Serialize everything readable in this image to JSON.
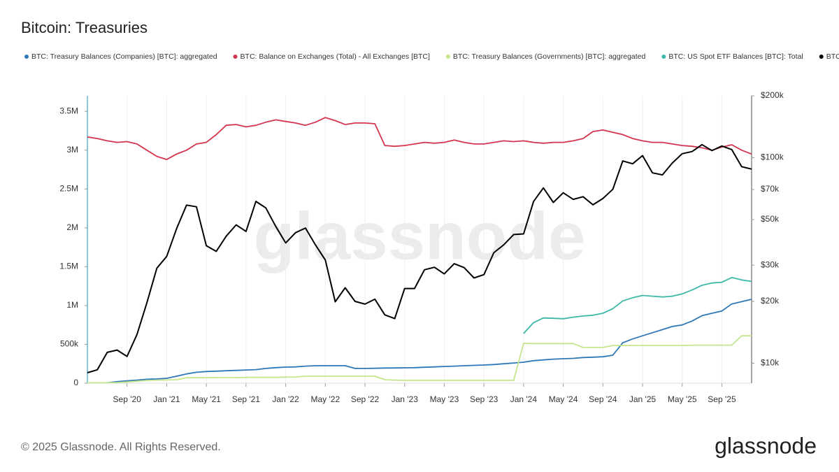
{
  "chart_data": {
    "type": "line",
    "title": "Bitcoin: Treasuries",
    "watermark": "glassnode",
    "footer": "© 2025 Glassnode. All Rights Reserved.",
    "logo": "glassnode",
    "legend": "top-left",
    "grid": "x",
    "x": [
      "2020-05",
      "2020-06",
      "2020-07",
      "2020-08",
      "2020-09",
      "2020-10",
      "2020-11",
      "2020-12",
      "2021-01",
      "2021-02",
      "2021-03",
      "2021-04",
      "2021-05",
      "2021-06",
      "2021-07",
      "2021-08",
      "2021-09",
      "2021-10",
      "2021-11",
      "2021-12",
      "2022-01",
      "2022-02",
      "2022-03",
      "2022-04",
      "2022-05",
      "2022-06",
      "2022-07",
      "2022-08",
      "2022-09",
      "2022-10",
      "2022-11",
      "2022-12",
      "2023-01",
      "2023-02",
      "2023-03",
      "2023-04",
      "2023-05",
      "2023-06",
      "2023-07",
      "2023-08",
      "2023-09",
      "2023-10",
      "2023-11",
      "2023-12",
      "2024-01",
      "2024-02",
      "2024-03",
      "2024-04",
      "2024-05",
      "2024-06",
      "2024-07",
      "2024-08",
      "2024-09",
      "2024-10",
      "2024-11",
      "2024-12",
      "2025-01",
      "2025-02",
      "2025-03",
      "2025-04",
      "2025-05",
      "2025-06",
      "2025-07",
      "2025-08",
      "2025-09",
      "2025-10",
      "2025-11",
      "2025-12"
    ],
    "xlim": [
      "2020-05",
      "2025-12"
    ],
    "xticks": [
      {
        "value": "2020-09",
        "label": "Sep '20"
      },
      {
        "value": "2021-01",
        "label": "Jan '21"
      },
      {
        "value": "2021-05",
        "label": "May '21"
      },
      {
        "value": "2021-09",
        "label": "Sep '21"
      },
      {
        "value": "2022-01",
        "label": "Jan '22"
      },
      {
        "value": "2022-05",
        "label": "May '22"
      },
      {
        "value": "2022-09",
        "label": "Sep '22"
      },
      {
        "value": "2023-01",
        "label": "Jan '23"
      },
      {
        "value": "2023-05",
        "label": "May '23"
      },
      {
        "value": "2023-09",
        "label": "Sep '23"
      },
      {
        "value": "2024-01",
        "label": "Jan '24"
      },
      {
        "value": "2024-05",
        "label": "May '24"
      },
      {
        "value": "2024-09",
        "label": "Sep '24"
      },
      {
        "value": "2025-01",
        "label": "Jan '25"
      },
      {
        "value": "2025-05",
        "label": "May '25"
      },
      {
        "value": "2025-09",
        "label": "Sep '25"
      }
    ],
    "ylim": [
      0,
      3700000
    ],
    "yticks": [
      0,
      {
        "value": 500000,
        "label": "500k"
      },
      {
        "value": 1000000,
        "label": "1M"
      },
      {
        "value": 1500000,
        "label": "1.5M"
      },
      {
        "value": 2000000,
        "label": "2M"
      },
      {
        "value": 2500000,
        "label": "2.5M"
      },
      {
        "value": 3000000,
        "label": "3M"
      },
      {
        "value": 3500000,
        "label": "3.5M"
      }
    ],
    "y2lim": [
      8000,
      200000
    ],
    "y2scale": "log",
    "y2ticks": [
      {
        "value": 10000,
        "label": "$10k"
      },
      {
        "value": 20000,
        "label": "$20k"
      },
      {
        "value": 30000,
        "label": "$30k"
      },
      {
        "value": 50000,
        "label": "$50k"
      },
      {
        "value": 70000,
        "label": "$70k"
      },
      {
        "value": 100000,
        "label": "$100k"
      },
      {
        "value": 200000,
        "label": "$200k"
      }
    ],
    "series": [
      {
        "name": "BTC: Treasury Balances (Companies) [BTC]: aggregated",
        "color": "#2e78b7",
        "values": [
          null,
          null,
          5000,
          20000,
          30000,
          40000,
          50000,
          55000,
          63000,
          90000,
          120000,
          140000,
          150000,
          155000,
          160000,
          165000,
          170000,
          175000,
          190000,
          200000,
          207000,
          210000,
          220000,
          225000,
          225000,
          225000,
          225000,
          190000,
          190000,
          192000,
          195000,
          196000,
          198000,
          200000,
          205000,
          210000,
          215000,
          220000,
          225000,
          230000,
          234000,
          240000,
          250000,
          260000,
          270000,
          290000,
          300000,
          310000,
          315000,
          320000,
          330000,
          335000,
          340000,
          360000,
          520000,
          570000,
          610000,
          650000,
          690000,
          730000,
          750000,
          800000,
          870000,
          900000,
          930000,
          1020000,
          1050000,
          1080000
        ]
      },
      {
        "name": "BTC: Balance on Exchanges (Total) - All Exchanges [BTC]",
        "color": "#d3354f",
        "values": [
          3170000,
          3150000,
          3120000,
          3100000,
          3110000,
          3080000,
          3000000,
          2920000,
          2880000,
          2950000,
          3000000,
          3080000,
          3100000,
          3200000,
          3320000,
          3330000,
          3300000,
          3320000,
          3360000,
          3390000,
          3370000,
          3350000,
          3320000,
          3360000,
          3420000,
          3380000,
          3330000,
          3350000,
          3350000,
          3340000,
          3060000,
          3050000,
          3060000,
          3080000,
          3100000,
          3090000,
          3100000,
          3130000,
          3100000,
          3080000,
          3080000,
          3100000,
          3120000,
          3110000,
          3120000,
          3100000,
          3090000,
          3100000,
          3100000,
          3120000,
          3150000,
          3240000,
          3260000,
          3230000,
          3200000,
          3150000,
          3120000,
          3100000,
          3100000,
          3080000,
          3060000,
          3050000,
          3030000,
          3000000,
          3040000,
          3070000,
          3000000,
          2950000
        ]
      },
      {
        "name": "BTC: Treasury Balances (Governments) [BTC]: aggregated",
        "color": "#c5e68c",
        "values": [
          5000,
          5000,
          5000,
          8000,
          15000,
          25000,
          35000,
          40000,
          42000,
          45000,
          70000,
          70000,
          70000,
          72000,
          72000,
          72000,
          75000,
          75000,
          75000,
          75000,
          78000,
          80000,
          90000,
          90000,
          90000,
          90000,
          90000,
          90000,
          90000,
          90000,
          45000,
          40000,
          36000,
          36000,
          36000,
          36000,
          36000,
          36000,
          36000,
          36000,
          36000,
          36000,
          36000,
          36000,
          513000,
          510000,
          510000,
          510000,
          510000,
          510000,
          460000,
          460000,
          460000,
          485000,
          485000,
          485000,
          485000,
          485000,
          485000,
          485000,
          485000,
          490000,
          490000,
          490000,
          490000,
          490000,
          610000,
          610000
        ]
      },
      {
        "name": "BTC: US Spot ETF Balances [BTC]: Total",
        "color": "#3db8a9",
        "values": [
          null,
          null,
          null,
          null,
          null,
          null,
          null,
          null,
          null,
          null,
          null,
          null,
          null,
          null,
          null,
          null,
          null,
          null,
          null,
          null,
          null,
          null,
          null,
          null,
          null,
          null,
          null,
          null,
          null,
          null,
          null,
          null,
          null,
          null,
          null,
          null,
          null,
          null,
          null,
          null,
          null,
          null,
          null,
          null,
          640000,
          780000,
          840000,
          835000,
          830000,
          850000,
          865000,
          875000,
          900000,
          960000,
          1060000,
          1100000,
          1130000,
          1120000,
          1110000,
          1120000,
          1150000,
          1200000,
          1260000,
          1290000,
          1300000,
          1360000,
          1330000,
          1310000
        ]
      },
      {
        "name": "BTC: Price [USD]",
        "color": "#000000",
        "axis": "y2",
        "values": [
          9000,
          9300,
          11300,
          11600,
          10800,
          13800,
          19700,
          29000,
          33100,
          45200,
          58800,
          57700,
          37300,
          35000,
          41500,
          47100,
          43800,
          61300,
          57000,
          46300,
          38500,
          43200,
          45500,
          37700,
          31800,
          19900,
          23300,
          20000,
          19400,
          20500,
          17200,
          16500,
          23100,
          23100,
          28500,
          29300,
          27200,
          30500,
          29200,
          26000,
          27000,
          34500,
          37700,
          42300,
          42600,
          61200,
          71300,
          60600,
          67500,
          62700,
          64600,
          59000,
          63300,
          70200,
          96400,
          93400,
          102400,
          84400,
          82500,
          94200,
          104600,
          107100,
          115800,
          108200,
          114000,
          109500,
          90400,
          88000
        ]
      }
    ]
  }
}
